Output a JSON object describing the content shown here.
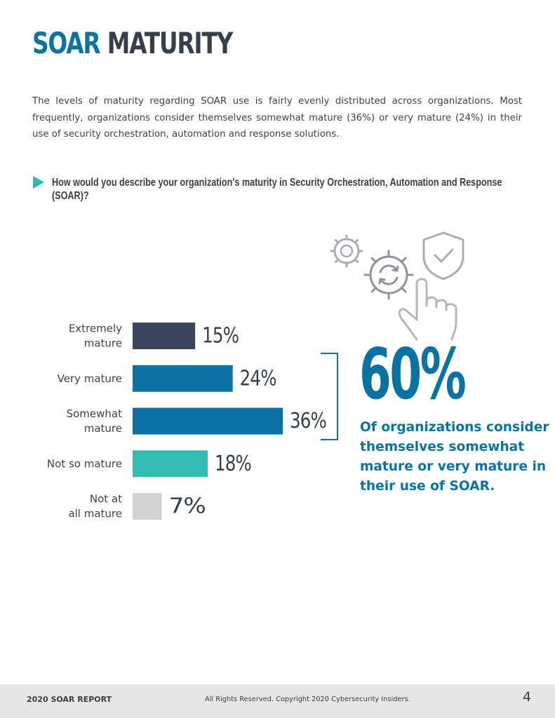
{
  "header": {
    "title_part1": "SOAR",
    "title_part2": "MATURITY",
    "intro": "The levels of maturity regarding SOAR use is fairly evenly distributed across organizations. Most frequently, organizations consider themselves somewhat mature (36%) or very mature (24%) in their use of security orchestration, automation and response solutions."
  },
  "question": "How would you describe your organization's maturity in Security Orchestration, Automation and Response (SOAR)?",
  "colors": {
    "brand_blue": "#0a73a4",
    "navy": "#3a4660",
    "teal": "#31bdb5",
    "gray": "#d1d1d1",
    "icon_gray": "#a9acb3"
  },
  "chart_data": {
    "type": "bar",
    "orientation": "horizontal",
    "categories": [
      [
        "Extremely",
        "mature"
      ],
      [
        "Very mature"
      ],
      [
        "Somewhat",
        "mature"
      ],
      [
        "Not so mature"
      ],
      [
        "Not at",
        "all mature"
      ]
    ],
    "values": [
      15,
      24,
      36,
      18,
      7
    ],
    "value_labels": [
      "15%",
      "24%",
      "36%",
      "18%",
      "7%"
    ],
    "bar_colors": [
      "#3a4660",
      "#0a73a4",
      "#0a73a4",
      "#31bdb5",
      "#d1d1d1"
    ],
    "unit": "%",
    "xlim": [
      0,
      36
    ]
  },
  "callout": {
    "big_value": "60%",
    "text": "Of organizations consider themselves somewhat mature or very mature in their use of SOAR."
  },
  "illustration": {
    "icons": [
      "gear-outline-icon",
      "gear-sync-icon",
      "shield-check-icon",
      "pointing-hand-icon"
    ]
  },
  "footer": {
    "left": "2020 SOAR REPORT",
    "center": "All Rights Reserved. Copyright 2020 Cybersecurity Insiders.",
    "page_number": "4"
  }
}
